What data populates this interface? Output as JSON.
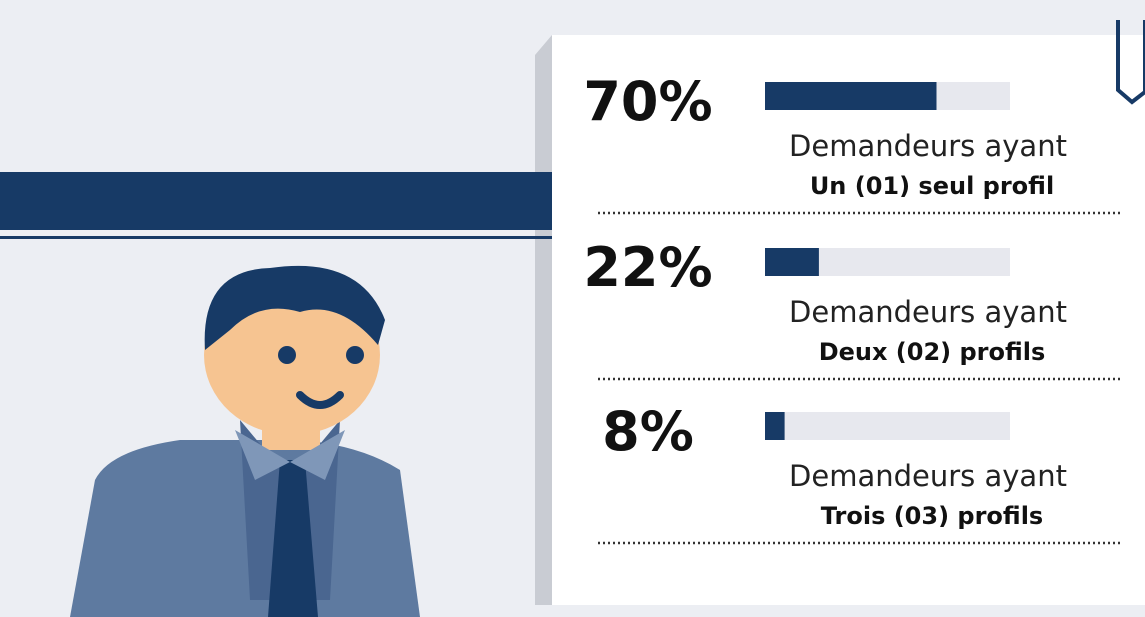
{
  "chart_data": {
    "type": "bar",
    "orientation": "horizontal",
    "values": [
      70,
      22,
      8
    ],
    "value_labels": [
      "70%",
      "22%",
      "8%"
    ],
    "captions": [
      "Demandeurs ayant",
      "Demandeurs ayant",
      "Demandeurs ayant"
    ],
    "categories": [
      "Un (01) seul profil",
      "Deux (02) profils",
      "Trois (03) profils"
    ],
    "xlim": [
      0,
      100
    ],
    "color": "#173a66",
    "track_color": "#e7e8ee"
  }
}
